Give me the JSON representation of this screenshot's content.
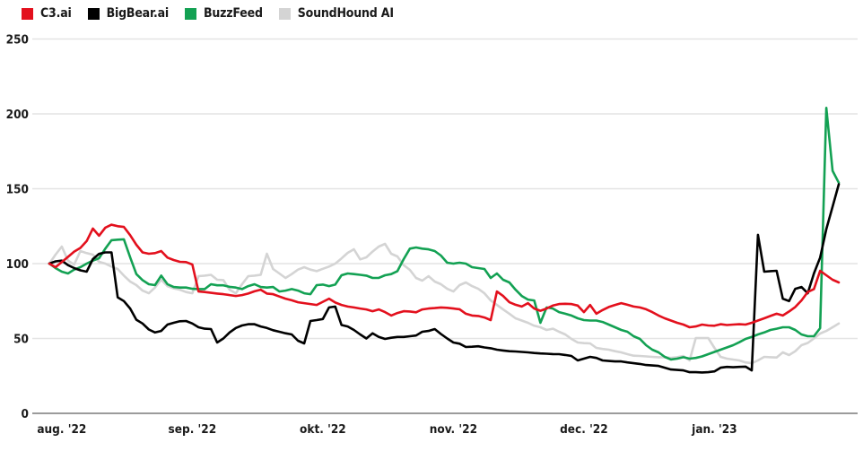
{
  "legend": {
    "items": [
      {
        "label": "C3.ai",
        "color": "#e3101d"
      },
      {
        "label": "BigBear.ai",
        "color": "#000000"
      },
      {
        "label": "BuzzFeed",
        "color": "#13a153"
      },
      {
        "label": "SoundHound AI",
        "color": "#d4d4d4"
      }
    ]
  },
  "chart_data": {
    "type": "line",
    "title": "",
    "xlabel": "",
    "ylabel": "",
    "ylim": [
      0,
      250
    ],
    "grid": "horizontal",
    "legend_position": "top-left",
    "baseline_index_value": 100,
    "y_axis": {
      "ticks": [
        0,
        50,
        100,
        150,
        200,
        250
      ]
    },
    "x_axis": {
      "tick_labels": [
        "aug. '22",
        "sep. '22",
        "okt. '22",
        "nov. '22",
        "dec. '22",
        "jan. '23"
      ],
      "tick_day_indices": [
        2,
        23,
        44,
        65,
        86,
        107
      ],
      "total_days": 128
    },
    "series": [
      {
        "name": "C3.ai",
        "color": "#e3101d",
        "values": [
          100,
          97.6,
          101,
          104.5,
          108,
          110.5,
          115,
          123.4,
          118.6,
          124,
          126,
          125,
          124.5,
          119,
          112.6,
          107.5,
          106.6,
          107,
          108.4,
          104,
          102.4,
          101.2,
          101,
          99.4,
          81.4,
          81,
          80.5,
          80,
          79.6,
          79,
          78.4,
          79,
          80,
          81.5,
          82.6,
          80,
          79.6,
          78,
          76.6,
          75.5,
          74.2,
          73.6,
          73,
          72.4,
          74.5,
          76.6,
          74,
          72.4,
          71.3,
          70.7,
          70,
          69.4,
          68.2,
          69.4,
          67.6,
          65.3,
          67,
          68.2,
          68,
          67.5,
          69.4,
          70,
          70.3,
          70.7,
          70.5,
          70,
          69.5,
          66.5,
          65.3,
          65,
          64,
          62.3,
          81.4,
          78.4,
          74.2,
          72.5,
          71.3,
          73.6,
          70,
          68.5,
          70,
          72,
          73,
          73.2,
          73,
          72,
          67.6,
          72.4,
          66.5,
          69,
          71,
          72.4,
          73.6,
          72.5,
          71.3,
          70.7,
          69.5,
          67.6,
          65.3,
          63.5,
          62,
          60.5,
          59.3,
          57.5,
          58,
          59.3,
          58.7,
          58.5,
          59.5,
          59,
          59.3,
          59.5,
          59.3,
          60.5,
          62,
          63.5,
          65,
          66.5,
          65.3,
          68,
          71,
          75.4,
          81,
          83,
          95.2,
          92.2,
          89.2,
          87.4
        ]
      },
      {
        "name": "BigBear.ai",
        "color": "#000000",
        "values": [
          100,
          101.5,
          102,
          99,
          97,
          95.5,
          94.6,
          103,
          106.5,
          107.5,
          107.5,
          77.5,
          75,
          70,
          62.5,
          60,
          56,
          54,
          55,
          59.3,
          60.5,
          61.5,
          61.7,
          60,
          57.5,
          56.5,
          56.3,
          47.3,
          50,
          54,
          57,
          58.7,
          59.5,
          59.5,
          58,
          57,
          55.5,
          54.5,
          53.5,
          52.7,
          48.5,
          46.7,
          61.7,
          62.3,
          63,
          70.7,
          71.3,
          59,
          58,
          55.7,
          52.7,
          50,
          53.5,
          51,
          49.7,
          50.5,
          51,
          51,
          51.5,
          52,
          54.5,
          55,
          56.3,
          53,
          50,
          47.3,
          46.5,
          44.3,
          44.5,
          44.8,
          44,
          43.5,
          42.5,
          42,
          41.5,
          41.3,
          41,
          40.7,
          40.3,
          40,
          39.8,
          39.6,
          39.5,
          39,
          38.3,
          35.3,
          36.5,
          37.7,
          37,
          35.3,
          35,
          34.7,
          34.7,
          34,
          33.5,
          33,
          32.3,
          32,
          31.7,
          30.5,
          29.3,
          29,
          28.7,
          27.5,
          27.5,
          27.3,
          27.5,
          28,
          30.5,
          31,
          30.8,
          31,
          31.2,
          28.7,
          119.2,
          94.6,
          95,
          95.2,
          76.6,
          75,
          83.2,
          84.4,
          80.2,
          93.4,
          104,
          123,
          138,
          153
        ]
      },
      {
        "name": "BuzzFeed",
        "color": "#13a153",
        "values": [
          100,
          97,
          94.6,
          93.4,
          96,
          97.6,
          100,
          102,
          103.6,
          110,
          115.6,
          116,
          116.2,
          104.2,
          93,
          89,
          86.2,
          85.6,
          92,
          86.2,
          84.4,
          84,
          84,
          83.2,
          83,
          83,
          86.2,
          85.5,
          85.5,
          84.5,
          84,
          83,
          85,
          86.2,
          84.4,
          84,
          84.4,
          81.4,
          82,
          83,
          82,
          80.2,
          79.6,
          85.6,
          86,
          85,
          86,
          92.2,
          93.4,
          93,
          92.5,
          92,
          90.4,
          90.5,
          92.2,
          93,
          95,
          103,
          110,
          110.8,
          110,
          109.5,
          108.4,
          105.4,
          100.6,
          100,
          100.6,
          100,
          97.6,
          97,
          96.4,
          90.4,
          93.4,
          89.2,
          87.4,
          82.6,
          78.4,
          76,
          75.4,
          60.5,
          70.7,
          70,
          67.6,
          66.5,
          65.3,
          63.5,
          62.3,
          62,
          62,
          61,
          59.3,
          57.5,
          55.7,
          54.5,
          51.5,
          49.7,
          45.5,
          42.5,
          40.7,
          37.7,
          36,
          36.5,
          37.5,
          36.5,
          37,
          38,
          39.5,
          41,
          42.5,
          44,
          45.5,
          47.5,
          49.7,
          51,
          52.7,
          54,
          55.7,
          56.5,
          57.5,
          57.5,
          55.7,
          52.7,
          51.5,
          51.5,
          56.9,
          204,
          162,
          154
        ]
      },
      {
        "name": "SoundHound AI",
        "color": "#d4d4d4",
        "values": [
          100,
          106,
          111.4,
          102,
          99.4,
          108.4,
          107,
          106,
          101.2,
          100,
          98,
          96.4,
          92,
          88,
          85.6,
          82,
          80.2,
          84,
          89.2,
          85,
          83.5,
          82.6,
          81,
          80.2,
          91.6,
          92,
          92.5,
          89.2,
          89,
          82.6,
          80.2,
          86.2,
          91.6,
          92,
          92.5,
          106.6,
          96.4,
          93.4,
          90.4,
          93,
          96,
          97.6,
          96,
          95,
          96.5,
          98,
          100,
          103.5,
          107.2,
          109.6,
          102.8,
          104.2,
          108,
          111.4,
          113.2,
          106.6,
          104.8,
          99,
          95.8,
          90.4,
          88.6,
          91.6,
          88,
          86.2,
          83.2,
          81.4,
          85.6,
          87.4,
          85,
          83.2,
          80.2,
          75.4,
          72.4,
          69.4,
          66.5,
          63.5,
          62,
          60.5,
          58.5,
          57.5,
          55.7,
          56.5,
          54.5,
          52.7,
          49.7,
          47.3,
          46.9,
          46.7,
          43.7,
          43,
          42.5,
          41.5,
          40.7,
          39.5,
          38.5,
          38.3,
          38,
          37.7,
          37.5,
          37.5,
          37,
          37.5,
          38.3,
          35.3,
          50.3,
          50.3,
          50.3,
          43.7,
          37.7,
          36.5,
          35.9,
          35.3,
          34,
          33.5,
          35.3,
          37.7,
          37.5,
          37.3,
          40.7,
          38.9,
          41.5,
          45.5,
          47,
          50,
          53.3,
          55,
          57.5,
          60
        ]
      }
    ],
    "colors": {
      "background": "#ffffff",
      "gridline": "#e4e4e4",
      "zero_line": "#9b9b9b",
      "axis_text": "#1a1a1a"
    }
  }
}
